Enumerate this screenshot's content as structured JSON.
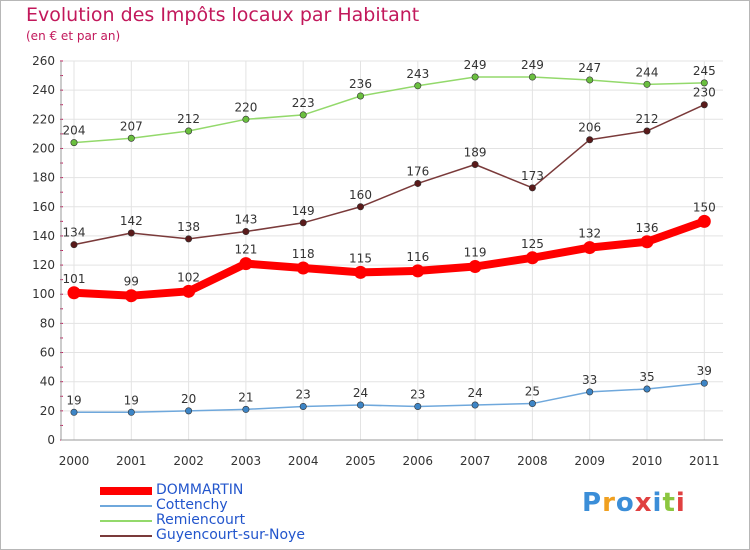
{
  "chart_data": {
    "type": "line",
    "title": "Evolution des Impôts locaux par Habitant",
    "subtitle": "(en € et par an)",
    "xlabel": "",
    "ylabel": "",
    "ylim": [
      0,
      260
    ],
    "yticks": [
      0,
      20,
      40,
      60,
      80,
      100,
      120,
      140,
      160,
      180,
      200,
      220,
      240,
      260
    ],
    "grid": true,
    "legend_position": "bottom-left",
    "categories": [
      "2000",
      "2001",
      "2002",
      "2003",
      "2004",
      "2005",
      "2006",
      "2007",
      "2008",
      "2009",
      "2010",
      "2011"
    ],
    "series": [
      {
        "name": "DOMMARTIN",
        "color": "#ff0000",
        "marker_color": "#ff0000",
        "emphasis": true,
        "values": [
          101,
          99,
          102,
          121,
          118,
          115,
          116,
          119,
          125,
          132,
          136,
          150
        ]
      },
      {
        "name": "Cottenchy",
        "color": "#6fa8dc",
        "marker_color": "#3d85c6",
        "emphasis": false,
        "values": [
          19,
          19,
          20,
          21,
          23,
          24,
          23,
          24,
          25,
          33,
          35,
          39
        ]
      },
      {
        "name": "Remiencourt",
        "color": "#93d96b",
        "marker_color": "#6abf3f",
        "emphasis": false,
        "values": [
          204,
          207,
          212,
          220,
          223,
          236,
          243,
          249,
          249,
          247,
          244,
          245
        ]
      },
      {
        "name": "Guyencourt-sur-Noye",
        "color": "#7a3a3a",
        "marker_color": "#5a1a1a",
        "emphasis": false,
        "values": [
          134,
          142,
          138,
          143,
          149,
          160,
          176,
          189,
          173,
          206,
          212,
          230
        ]
      }
    ]
  },
  "legend_text_color": "#2255cc",
  "logo": {
    "letters": [
      "P",
      "r",
      "o",
      "x",
      "i",
      "t",
      "i"
    ],
    "colors": [
      "#3b8ed8",
      "#f0a020",
      "#3b8ed8",
      "#e04040",
      "#3b8ed8",
      "#8cc63f",
      "#e04040"
    ]
  }
}
